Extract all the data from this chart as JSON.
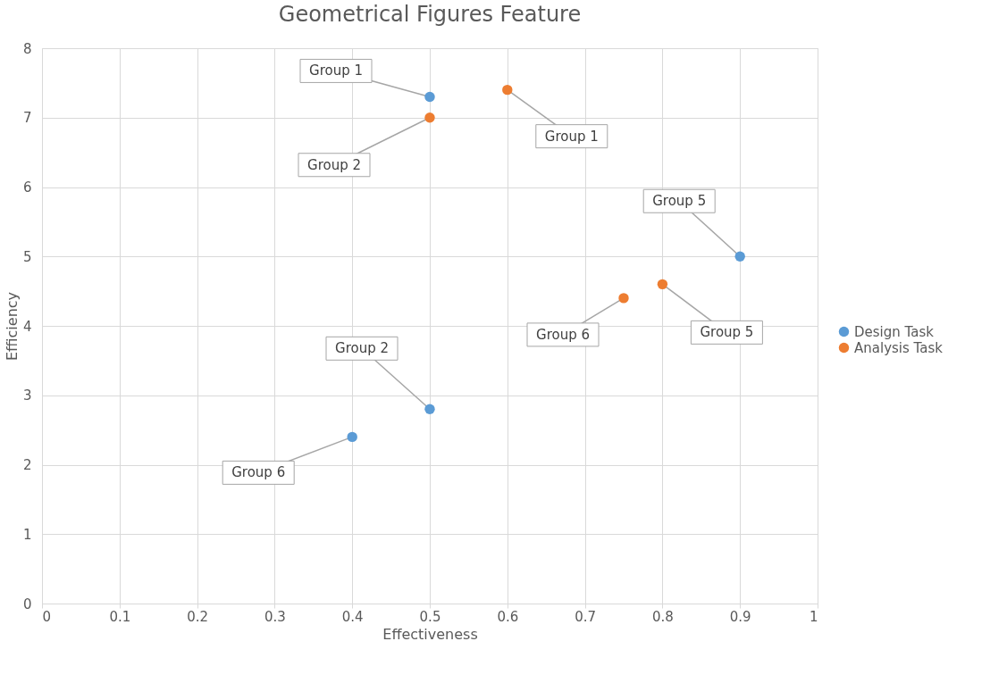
{
  "chart_data": {
    "type": "scatter",
    "title": "Geometrical Figures Feature",
    "xlabel": "Effectiveness",
    "ylabel": "Efficiency",
    "series": [
      {
        "name": "Design Task",
        "color": "#5b9bd5",
        "x": [
          0.5,
          0.9,
          0.5,
          0.4
        ],
        "values": [
          7.3,
          5,
          2.8,
          2.4
        ]
      },
      {
        "name": "Analysis Task",
        "color": "#ed7d31",
        "x": [
          0.6,
          0.5,
          0.8,
          0.75
        ],
        "values": [
          7.4,
          7.0,
          4.6,
          4.4
        ]
      }
    ],
    "annotations": [
      {
        "text": "Group 1",
        "x": 0.5,
        "y": 7.3
      },
      {
        "text": "Group 5",
        "x": 0.9,
        "y": 5
      },
      {
        "text": "Group 2",
        "x": 0.5,
        "y": 2.8
      },
      {
        "text": "Group 6",
        "x": 0.4,
        "y": 2.4
      },
      {
        "text": "Group 1",
        "x": 0.6,
        "y": 7.4
      },
      {
        "text": "Group 2",
        "x": 0.5,
        "y": 7.0
      },
      {
        "text": "Group 5",
        "x": 0.8,
        "y": 4.6
      },
      {
        "text": "Group 6",
        "x": 0.75,
        "y": 4.4
      }
    ],
    "xlim": [
      0,
      1
    ],
    "xticks": [
      0,
      0.1,
      0.2,
      0.3,
      0.4,
      0.5,
      0.6,
      0.7,
      0.8,
      0.9,
      1
    ],
    "ylim": [
      0,
      8
    ],
    "yticks": [
      0,
      1,
      2,
      3,
      4,
      5,
      6,
      7,
      8
    ],
    "grid": true,
    "legend": "right",
    "marker": "circle"
  }
}
